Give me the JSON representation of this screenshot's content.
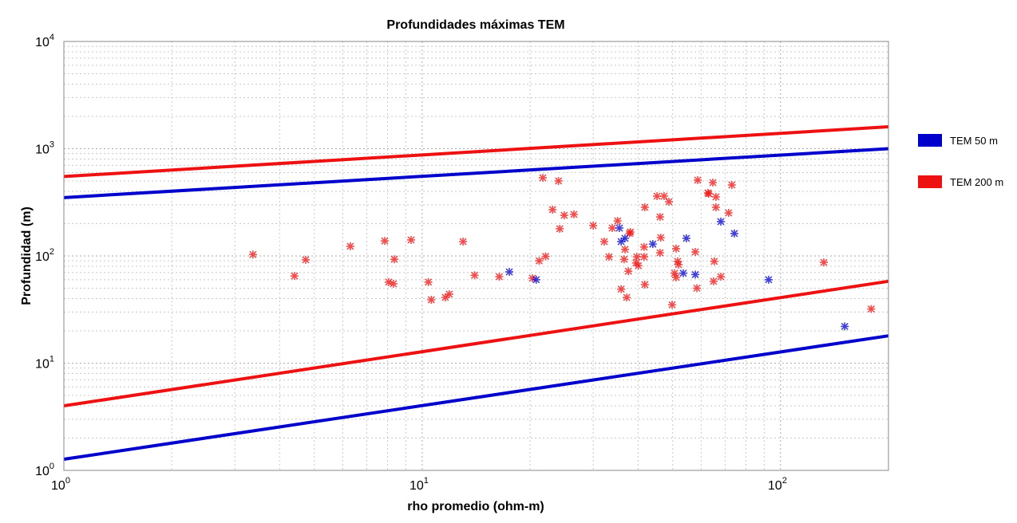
{
  "chart_data": {
    "type": "scatter",
    "title": "Profundidades máximas TEM",
    "xlabel": "rho promedio (ohm-m)",
    "ylabel": "Profundidad (m)",
    "xscale": "log",
    "yscale": "log",
    "xlim": [
      1,
      200
    ],
    "ylim": [
      1,
      10000
    ],
    "xticks": [
      {
        "base": "10",
        "exp": "0",
        "value": 1
      },
      {
        "base": "10",
        "exp": "1",
        "value": 10
      },
      {
        "base": "10",
        "exp": "2",
        "value": 100
      }
    ],
    "yticks": [
      {
        "base": "10",
        "exp": "0",
        "value": 1
      },
      {
        "base": "10",
        "exp": "1",
        "value": 10
      },
      {
        "base": "10",
        "exp": "2",
        "value": 100
      },
      {
        "base": "10",
        "exp": "3",
        "value": 1000
      },
      {
        "base": "10",
        "exp": "4",
        "value": 10000
      }
    ],
    "grid": true,
    "legend_position": "right",
    "legend": [
      {
        "label": "TEM 50 m",
        "color": "#0000cc"
      },
      {
        "label": "TEM 200 m",
        "color": "#ee1111"
      }
    ],
    "lines": [
      {
        "name": "TEM 200 m max",
        "color": "#ee1111",
        "x": [
          1,
          200
        ],
        "y": [
          550,
          1600
        ]
      },
      {
        "name": "TEM 50 m max",
        "color": "#0000cc",
        "x": [
          1,
          200
        ],
        "y": [
          350,
          1000
        ]
      },
      {
        "name": "TEM 200 m min",
        "color": "#ee1111",
        "x": [
          1,
          200
        ],
        "y": [
          4,
          58
        ]
      },
      {
        "name": "TEM 50 m min",
        "color": "#0000cc",
        "x": [
          1,
          200
        ],
        "y": [
          1.27,
          18
        ]
      }
    ],
    "series": [
      {
        "name": "TEM 200 m",
        "color": "#ee1111",
        "points": [
          [
            3.37,
            103
          ],
          [
            4.4,
            65
          ],
          [
            4.73,
            92
          ],
          [
            6.3,
            123
          ],
          [
            7.86,
            138
          ],
          [
            8.36,
            93
          ],
          [
            8.06,
            57
          ],
          [
            8.31,
            55
          ],
          [
            9.31,
            141
          ],
          [
            10.4,
            57
          ],
          [
            10.6,
            39
          ],
          [
            11.6,
            41
          ],
          [
            11.9,
            44
          ],
          [
            13.0,
            136
          ],
          [
            14.0,
            66
          ],
          [
            16.4,
            64
          ],
          [
            20.3,
            62
          ],
          [
            21.2,
            90
          ],
          [
            22.1,
            99
          ],
          [
            21.7,
            535
          ],
          [
            24.0,
            500
          ],
          [
            23.1,
            270
          ],
          [
            24.9,
            239
          ],
          [
            26.5,
            244
          ],
          [
            24.2,
            179
          ],
          [
            30.0,
            192
          ],
          [
            32.2,
            136
          ],
          [
            33.2,
            98
          ],
          [
            33.9,
            182
          ],
          [
            35.1,
            212
          ],
          [
            35.9,
            49
          ],
          [
            36.6,
            93
          ],
          [
            36.8,
            115
          ],
          [
            37.2,
            41
          ],
          [
            37.6,
            72
          ],
          [
            37.9,
            162
          ],
          [
            38.1,
            167
          ],
          [
            39.7,
            98
          ],
          [
            40.1,
            81
          ],
          [
            39.5,
            86
          ],
          [
            41.6,
            121
          ],
          [
            41.8,
            284
          ],
          [
            41.8,
            54
          ],
          [
            41.6,
            98
          ],
          [
            45.2,
            361
          ],
          [
            46.1,
            231
          ],
          [
            46.3,
            148
          ],
          [
            46.1,
            107
          ],
          [
            47.3,
            361
          ],
          [
            48.8,
            320
          ],
          [
            49.8,
            35
          ],
          [
            50.6,
            69
          ],
          [
            51.1,
            117
          ],
          [
            51.6,
            89
          ],
          [
            51.9,
            83
          ],
          [
            51.1,
            63
          ],
          [
            57.8,
            109
          ],
          [
            58.4,
            50
          ],
          [
            58.7,
            509
          ],
          [
            62.7,
            387
          ],
          [
            63.0,
            380
          ],
          [
            64.7,
            483
          ],
          [
            66.0,
            355
          ],
          [
            66.0,
            284
          ],
          [
            65.3,
            89
          ],
          [
            65.0,
            58
          ],
          [
            68.1,
            64
          ],
          [
            71.6,
            252
          ],
          [
            73.1,
            459
          ],
          [
            132,
            87
          ],
          [
            179,
            32
          ]
        ]
      },
      {
        "name": "TEM 50 m",
        "color": "#0000cc",
        "points": [
          [
            17.5,
            71
          ],
          [
            20.8,
            60
          ],
          [
            35.5,
            182
          ],
          [
            35.9,
            136
          ],
          [
            36.8,
            146
          ],
          [
            44.0,
            129
          ],
          [
            54.6,
            146
          ],
          [
            53.5,
            69
          ],
          [
            57.8,
            67
          ],
          [
            68.1,
            209
          ],
          [
            74.3,
            162
          ],
          [
            92.6,
            60
          ],
          [
            151,
            22
          ]
        ]
      }
    ]
  }
}
